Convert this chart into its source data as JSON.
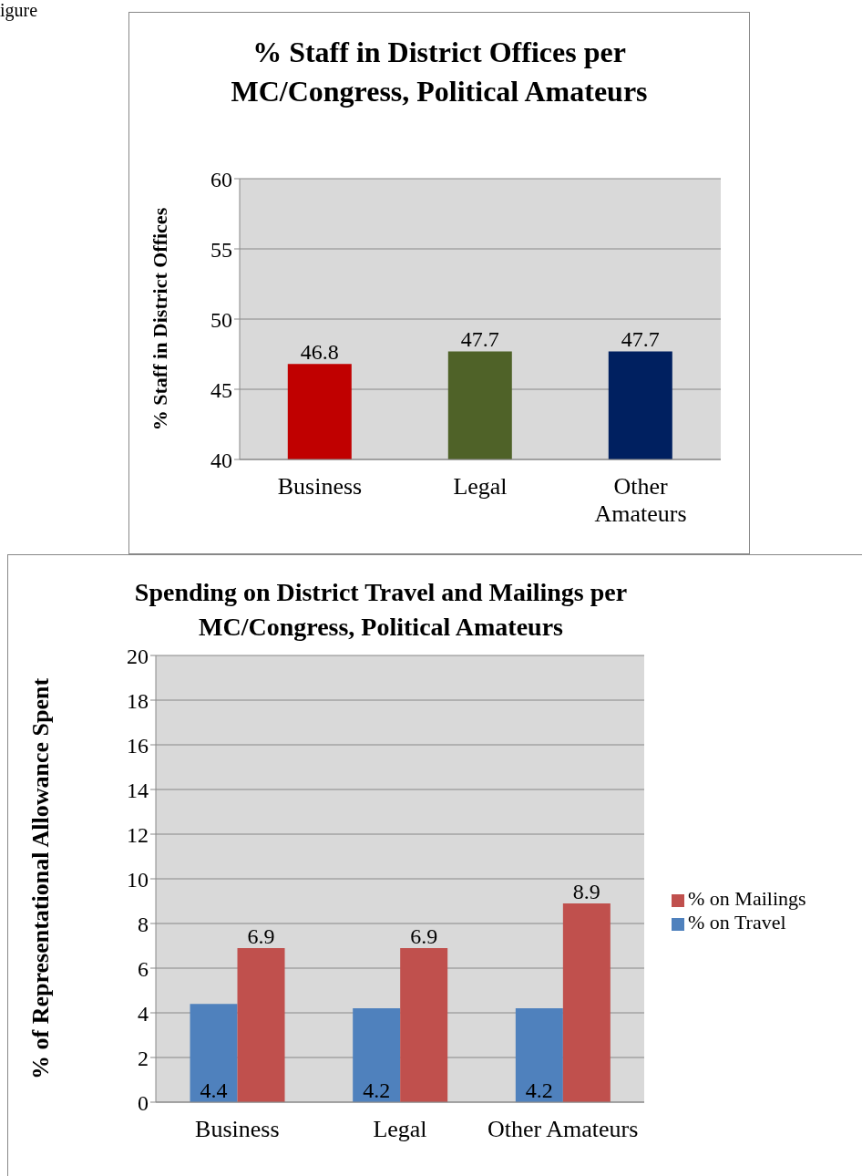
{
  "chart_data": [
    {
      "type": "bar",
      "title": "% Staff in District Offices per MC/Congress, Political Amateurs",
      "ylabel": "% Staff in District Offices",
      "categories": [
        "Business",
        "Legal",
        "Other Amateurs"
      ],
      "values": [
        46.8,
        47.7,
        47.7
      ],
      "colors": [
        "#c00000",
        "#4f6228",
        "#002060"
      ],
      "ylim": [
        40,
        60
      ],
      "yticks": [
        40,
        45,
        50,
        55,
        60
      ],
      "grid": "y",
      "data_labels": true,
      "legend": false,
      "annotations": [
        "igure"
      ]
    },
    {
      "type": "bar",
      "title": "Spending on District Travel and Mailings per MC/Congress, Political Amateurs",
      "ylabel": "% of Representational Allowance Spent",
      "categories": [
        "Business",
        "Legal",
        "Other Amateurs"
      ],
      "series": [
        {
          "name": "% on Travel",
          "color": "#4f81bd",
          "values": [
            4.4,
            4.2,
            4.2
          ]
        },
        {
          "name": "% on Mailings",
          "color": "#c0504d",
          "values": [
            6.9,
            6.9,
            8.9
          ]
        }
      ],
      "ylim": [
        0,
        20
      ],
      "yticks": [
        0,
        2,
        4,
        6,
        8,
        10,
        12,
        14,
        16,
        18,
        20
      ],
      "grid": "y",
      "data_labels": true,
      "legend": "right"
    }
  ]
}
